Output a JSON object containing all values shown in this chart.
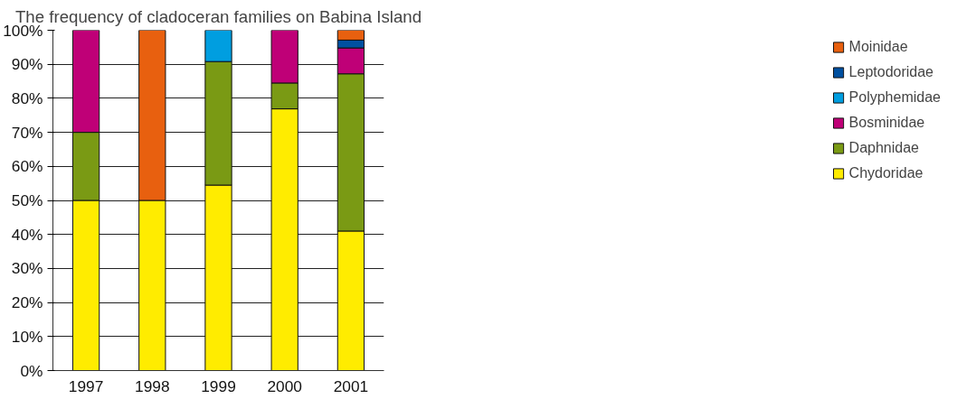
{
  "chart_data": {
    "type": "bar",
    "title": "The frequency of cladoceran families on Babina Island",
    "categories": [
      "1997",
      "1998",
      "1999",
      "2000",
      "2001"
    ],
    "stacked": true,
    "series": [
      {
        "name": "Chydoridae",
        "color": "#ffec00",
        "values": [
          50,
          50,
          54.5,
          76.9,
          41.0
        ]
      },
      {
        "name": "Daphnidae",
        "color": "#7a9a14",
        "values": [
          20,
          0,
          36.3,
          7.6,
          46.2
        ]
      },
      {
        "name": "Bosminidae",
        "color": "#bf0077",
        "values": [
          30,
          0,
          0,
          15.5,
          7.6
        ]
      },
      {
        "name": "Polyphemidae",
        "color": "#009ee0",
        "values": [
          0,
          0,
          9.2,
          0,
          0
        ]
      },
      {
        "name": "Leptodoridae",
        "color": "#0050a0",
        "values": [
          0,
          0,
          0,
          0,
          2.3
        ]
      },
      {
        "name": "Moinidae",
        "color": "#e8600f",
        "values": [
          0,
          50,
          0,
          0,
          2.9
        ]
      }
    ],
    "ylim": [
      0,
      100
    ],
    "yticks": [
      {
        "value": 0,
        "label": "0%"
      },
      {
        "value": 10,
        "label": "10%"
      },
      {
        "value": 20,
        "label": "20%"
      },
      {
        "value": 30,
        "label": "30%"
      },
      {
        "value": 40,
        "label": "40%"
      },
      {
        "value": 50,
        "label": "50%"
      },
      {
        "value": 60,
        "label": "60%"
      },
      {
        "value": 70,
        "label": "70%"
      },
      {
        "value": 80,
        "label": "80%"
      },
      {
        "value": 90,
        "label": "90%"
      },
      {
        "value": 100,
        "label": "100%"
      }
    ],
    "grid": "y",
    "legend": "right"
  }
}
